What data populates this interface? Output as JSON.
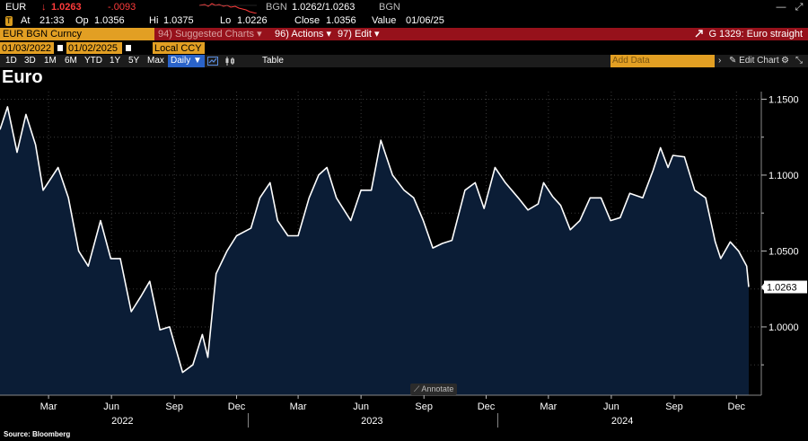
{
  "ticker": {
    "symbol": "EUR",
    "arrow": "↓",
    "last": "1.0263",
    "change": "-.0093",
    "source_code": "BGN",
    "bid_ask": "1.0262/1.0263",
    "source_code2": "BGN"
  },
  "details": {
    "at_label": "At",
    "time": "21:33",
    "open_label": "Op",
    "open": "1.0356",
    "high_label": "Hi",
    "high": "1.0375",
    "low_label": "Lo",
    "low": "1.0226",
    "close_label": "Close",
    "close": "1.0356",
    "value_label": "Value",
    "value_date": "01/06/25"
  },
  "menubar": {
    "security": "EUR BGN Curncy",
    "suggested_num": "94)",
    "suggested": "Suggested Charts",
    "actions_num": "96)",
    "actions": "Actions",
    "edit_num": "97)",
    "edit": "Edit",
    "chart_id": "G 1329: Euro straight",
    "caret": "▾"
  },
  "range": {
    "start": "01/03/2022",
    "end": "01/02/2025",
    "currency": "Local CCY"
  },
  "toolbar": {
    "periods": [
      "1D",
      "3D",
      "1M",
      "6M",
      "YTD",
      "1Y",
      "5Y",
      "Max"
    ],
    "frequency": "Daily ▼",
    "table": "Table",
    "add_data": "Add Data",
    "edit_chart": "Edit Chart"
  },
  "chart_title": "Euro",
  "annotate": "Annotate",
  "source": "Source: Bloomberg",
  "colors": {
    "accent_orange": "#e29f23",
    "menu_red": "#96111b",
    "area_fill": "#0b1d36",
    "line": "#ffffff",
    "down": "#ff3b3b",
    "toolbar_blue": "#2a63c9"
  },
  "chart_data": {
    "type": "area",
    "title": "Euro",
    "xlabel": "",
    "ylabel": "",
    "x_range": [
      "2022-01-03",
      "2025-01-02"
    ],
    "ylim": [
      0.955,
      1.155
    ],
    "y_ticks": [
      1.0,
      1.05,
      1.1,
      1.15
    ],
    "y_tick_labels": [
      "1.0000",
      "1.0500",
      "1.1000",
      "1.1500"
    ],
    "last_value_label": "1.0263",
    "x_month_labels": [
      "Mar",
      "Jun",
      "Sep",
      "Dec",
      "Mar",
      "Jun",
      "Sep",
      "Dec",
      "Mar",
      "Jun",
      "Sep",
      "Dec"
    ],
    "x_month_dates": [
      "2022-03-15",
      "2022-06-15",
      "2022-09-15",
      "2022-12-15",
      "2023-03-15",
      "2023-06-15",
      "2023-09-15",
      "2023-12-15",
      "2024-03-15",
      "2024-06-15",
      "2024-09-15",
      "2024-12-15"
    ],
    "x_year_labels": [
      "2022",
      "2023",
      "2024"
    ],
    "x_year_dates": [
      "2022-07-01",
      "2023-07-01",
      "2024-07-01"
    ],
    "grid": true,
    "series": [
      {
        "x": [
          "2022-01-03",
          "2022-01-14",
          "2022-01-28",
          "2022-02-10",
          "2022-02-24",
          "2022-03-07",
          "2022-03-29",
          "2022-04-13",
          "2022-04-28",
          "2022-05-12",
          "2022-05-30",
          "2022-06-14",
          "2022-06-28",
          "2022-07-14",
          "2022-07-28",
          "2022-08-10",
          "2022-08-25",
          "2022-09-08",
          "2022-09-27",
          "2022-10-12",
          "2022-10-26",
          "2022-11-03",
          "2022-11-15",
          "2022-12-01",
          "2022-12-15",
          "2023-01-05",
          "2023-01-18",
          "2023-02-02",
          "2023-02-13",
          "2023-02-28",
          "2023-03-15",
          "2023-03-31",
          "2023-04-14",
          "2023-04-26",
          "2023-05-10",
          "2023-05-31",
          "2023-06-15",
          "2023-06-30",
          "2023-07-14",
          "2023-07-31",
          "2023-08-17",
          "2023-08-31",
          "2023-09-14",
          "2023-09-28",
          "2023-10-12",
          "2023-10-26",
          "2023-11-14",
          "2023-11-29",
          "2023-12-12",
          "2023-12-28",
          "2024-01-12",
          "2024-01-31",
          "2024-02-14",
          "2024-02-29",
          "2024-03-08",
          "2024-03-21",
          "2024-04-02",
          "2024-04-16",
          "2024-04-30",
          "2024-05-15",
          "2024-05-31",
          "2024-06-14",
          "2024-06-28",
          "2024-07-12",
          "2024-07-31",
          "2024-08-15",
          "2024-08-26",
          "2024-09-06",
          "2024-09-13",
          "2024-09-30",
          "2024-10-15",
          "2024-10-31",
          "2024-11-14",
          "2024-11-22",
          "2024-12-06",
          "2024-12-18",
          "2024-12-30",
          "2025-01-02"
        ],
        "y": [
          1.13,
          1.145,
          1.115,
          1.14,
          1.12,
          1.09,
          1.105,
          1.085,
          1.05,
          1.04,
          1.07,
          1.045,
          1.045,
          1.01,
          1.02,
          1.03,
          0.998,
          1.0,
          0.97,
          0.975,
          0.995,
          0.98,
          1.035,
          1.05,
          1.06,
          1.065,
          1.085,
          1.095,
          1.07,
          1.06,
          1.06,
          1.085,
          1.1,
          1.105,
          1.085,
          1.07,
          1.09,
          1.09,
          1.123,
          1.1,
          1.09,
          1.085,
          1.07,
          1.052,
          1.055,
          1.057,
          1.09,
          1.095,
          1.078,
          1.105,
          1.095,
          1.085,
          1.077,
          1.081,
          1.095,
          1.086,
          1.08,
          1.064,
          1.07,
          1.085,
          1.085,
          1.07,
          1.072,
          1.088,
          1.085,
          1.103,
          1.118,
          1.105,
          1.113,
          1.112,
          1.09,
          1.085,
          1.056,
          1.045,
          1.056,
          1.05,
          1.04,
          1.0263
        ]
      }
    ]
  }
}
